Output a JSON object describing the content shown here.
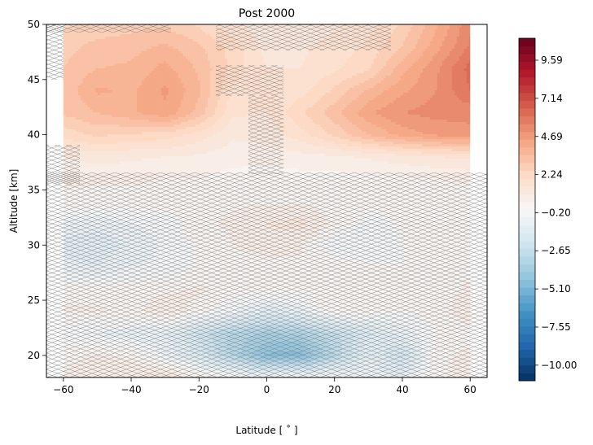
{
  "chart_data": {
    "type": "heatmap",
    "title": "Post 2000",
    "xlabel": "Latitude [$^\\circ$]",
    "xlabel_text": "Latitude [ ˚ ]",
    "ylabel": "Altitude [km]",
    "xlim": [
      -65,
      65
    ],
    "ylim": [
      18,
      50
    ],
    "x_ticks": [
      -60,
      -40,
      -20,
      0,
      20,
      40,
      60
    ],
    "x_tick_labels": [
      "−60",
      "−40",
      "−20",
      "0",
      "20",
      "40",
      "60"
    ],
    "y_ticks": [
      20,
      25,
      30,
      35,
      40,
      45,
      50
    ],
    "y_tick_labels": [
      "20",
      "25",
      "30",
      "35",
      "40",
      "45",
      "50"
    ],
    "data_x_range": [
      -60,
      60
    ],
    "colormap": "RdBu_r",
    "colorbar": {
      "min": -11.0,
      "max": 11.0,
      "ticks": [
        -10.0,
        -7.55,
        -5.1,
        -2.65,
        -0.2,
        2.24,
        4.69,
        7.14,
        9.59
      ],
      "tick_labels": [
        "−10.00",
        "−7.55",
        "−5.10",
        "−2.65",
        "−0.20",
        "2.24",
        "4.69",
        "7.14",
        "9.59"
      ]
    },
    "hatching": "non-significant regions (x pattern)",
    "lat": [
      -60,
      -50,
      -40,
      -30,
      -20,
      -10,
      0,
      10,
      20,
      30,
      40,
      50,
      60
    ],
    "alt": [
      18,
      20,
      22,
      24,
      26,
      28,
      30,
      32,
      34,
      36,
      38,
      40,
      42,
      44,
      46,
      48,
      50
    ],
    "z": [
      [
        0.6,
        0.9,
        1.0,
        1.4,
        0.6,
        0.0,
        -0.5,
        -0.3,
        -0.2,
        -0.6,
        -1.0,
        0.4,
        0.7
      ],
      [
        0.3,
        0.6,
        0.4,
        -0.6,
        -1.6,
        -3.2,
        -4.6,
        -4.8,
        -3.0,
        -1.0,
        -2.2,
        0.4,
        0.6
      ],
      [
        -0.4,
        -0.6,
        -0.8,
        -1.0,
        -2.2,
        -3.2,
        -3.6,
        -3.4,
        -2.6,
        -1.6,
        -0.8,
        0.0,
        0.4
      ],
      [
        0.6,
        0.6,
        0.3,
        0.9,
        0.3,
        -0.4,
        -1.2,
        -0.8,
        0.4,
        0.2,
        0.0,
        0.3,
        0.8
      ],
      [
        0.3,
        0.2,
        0.3,
        0.4,
        0.6,
        0.3,
        0.2,
        0.3,
        0.5,
        0.2,
        0.1,
        0.3,
        0.6
      ],
      [
        -0.8,
        -1.0,
        -0.5,
        -0.4,
        0.1,
        0.2,
        0.2,
        0.4,
        0.3,
        0.1,
        0.0,
        0.2,
        0.4
      ],
      [
        -1.2,
        -1.4,
        -0.9,
        -0.4,
        0.1,
        0.5,
        0.9,
        0.6,
        -0.4,
        -0.5,
        0.0,
        0.2,
        0.4
      ],
      [
        -0.6,
        -0.8,
        -0.5,
        -0.3,
        0.4,
        0.6,
        1.0,
        1.2,
        0.4,
        -0.2,
        0.1,
        0.3,
        0.5
      ],
      [
        0.4,
        0.3,
        0.3,
        0.3,
        0.4,
        0.4,
        0.4,
        0.4,
        0.3,
        0.2,
        0.1,
        0.2,
        0.3
      ],
      [
        0.6,
        0.6,
        0.6,
        0.5,
        0.5,
        0.3,
        0.2,
        0.3,
        0.3,
        0.3,
        0.4,
        0.5,
        0.6
      ],
      [
        1.0,
        1.2,
        1.1,
        1.0,
        0.9,
        0.7,
        0.7,
        0.8,
        0.9,
        1.1,
        1.3,
        1.5,
        1.6
      ],
      [
        2.2,
        2.6,
        2.4,
        2.3,
        1.8,
        1.1,
        1.2,
        1.8,
        2.6,
        3.5,
        4.2,
        4.6,
        4.8
      ],
      [
        3.1,
        3.5,
        3.9,
        4.4,
        3.3,
        1.6,
        1.5,
        2.4,
        3.3,
        4.4,
        5.0,
        5.2,
        5.2
      ],
      [
        3.1,
        4.1,
        3.9,
        4.6,
        3.6,
        1.9,
        1.6,
        1.8,
        2.6,
        3.6,
        4.4,
        5.0,
        6.0
      ],
      [
        3.0,
        3.5,
        3.6,
        4.2,
        3.4,
        2.3,
        1.5,
        1.5,
        1.9,
        2.4,
        3.8,
        4.9,
        6.2
      ],
      [
        2.8,
        3.2,
        3.3,
        3.6,
        3.1,
        2.3,
        1.3,
        1.4,
        1.7,
        2.1,
        3.0,
        4.3,
        5.6
      ],
      [
        2.4,
        2.6,
        2.8,
        2.9,
        2.4,
        1.6,
        1.1,
        1.1,
        1.4,
        1.8,
        2.6,
        3.9,
        5.4
      ]
    ]
  }
}
